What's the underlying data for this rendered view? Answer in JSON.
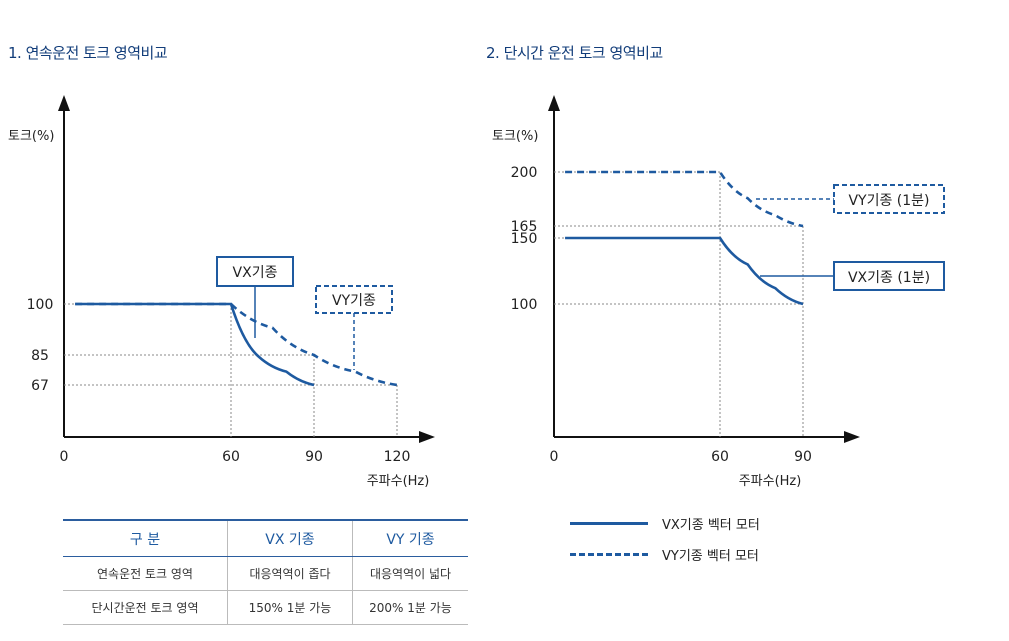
{
  "titles": {
    "left": "1. 연속운전 토크 영역비교",
    "right": "2. 단시간 운전 토크 영역비교"
  },
  "colors": {
    "series": "#1e5aa0",
    "grid": "#888888"
  },
  "chart_data": [
    {
      "type": "line",
      "title": "1. 연속운전 토크 영역비교",
      "xlabel": "주파수(Hz)",
      "ylabel": "토크(%)",
      "xlim": [
        0,
        140
      ],
      "ylim": [
        0,
        185
      ],
      "x_ticks": [
        0,
        60,
        90,
        120
      ],
      "y_ticks": [
        100,
        85,
        67
      ],
      "series": [
        {
          "name": "VX기종",
          "style": "solid",
          "x": [
            4,
            60,
            70,
            80,
            90
          ],
          "y": [
            100,
            100,
            84,
            75,
            67
          ]
        },
        {
          "name": "VY기종",
          "style": "dashed",
          "x": [
            4,
            60,
            75,
            90,
            105,
            120
          ],
          "y": [
            100,
            100,
            93,
            85,
            75,
            67
          ]
        }
      ],
      "callouts": [
        {
          "label": "VX기종",
          "style": "solid"
        },
        {
          "label": "VY기종",
          "style": "dashed"
        }
      ]
    },
    {
      "type": "line",
      "title": "2. 단시간 운전 토크 영역비교",
      "xlabel": "주파수(Hz)",
      "ylabel": "토크(%)",
      "xlim": [
        0,
        110
      ],
      "ylim": [
        0,
        245
      ],
      "x_ticks": [
        0,
        60,
        90
      ],
      "y_ticks": [
        200,
        165,
        150,
        100
      ],
      "series": [
        {
          "name": "VX기종 벡터 모터",
          "style": "solid",
          "x": [
            4,
            60,
            70,
            80,
            90
          ],
          "y": [
            150,
            150,
            130,
            112,
            100
          ]
        },
        {
          "name": "VY기종 벡터 모터",
          "style": "dashed",
          "x": [
            4,
            60,
            70,
            80,
            90
          ],
          "y": [
            200,
            200,
            183,
            172,
            165
          ]
        }
      ],
      "callouts": [
        {
          "label": "VY기종 (1분)",
          "style": "dashed"
        },
        {
          "label": "VX기종 (1분)",
          "style": "solid"
        }
      ]
    }
  ],
  "table": {
    "headers": [
      "구 분",
      "VX 기종",
      "VY 기종"
    ],
    "rows": [
      [
        "연속운전 토크 영역",
        "대응역역이 좁다",
        "대응역역이 넓다"
      ],
      [
        "단시간운전 토크 영역",
        "150% 1분 가능",
        "200% 1분 가능"
      ]
    ]
  },
  "legend": [
    {
      "label": "VX기종 벡터 모터",
      "style": "solid"
    },
    {
      "label": "VY기종 벡터 모터",
      "style": "dashed"
    }
  ]
}
